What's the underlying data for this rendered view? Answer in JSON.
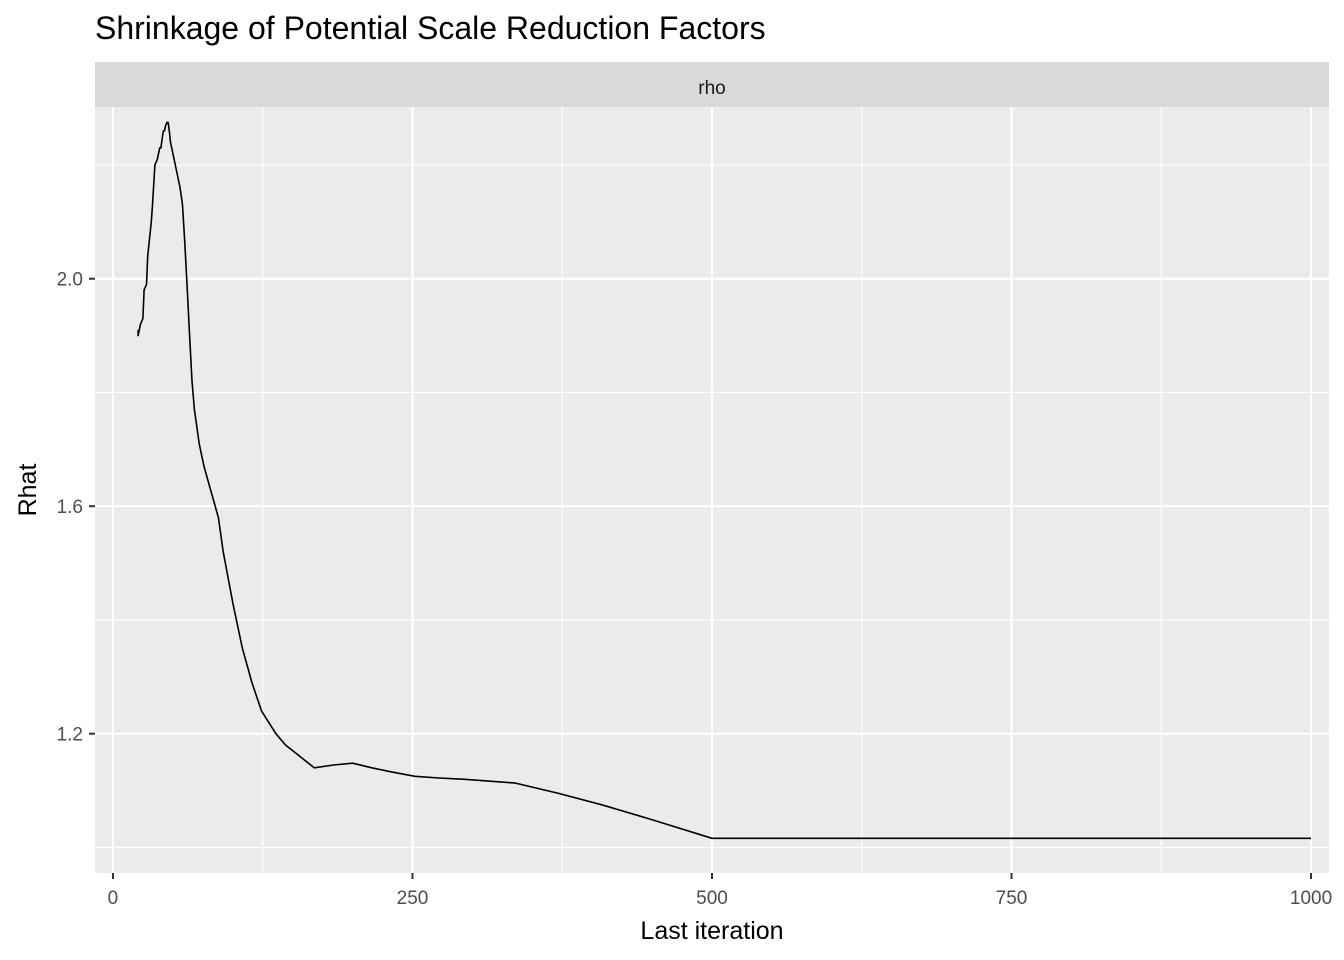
{
  "chart_data": {
    "type": "line",
    "title": "Shrinkage of Potential Scale Reduction Factors",
    "facet_label": "rho",
    "xlabel": "Last iteration",
    "ylabel": "Rhat",
    "xlim": [
      -15,
      1015
    ],
    "ylim": [
      0.955,
      2.302
    ],
    "x_ticks": [
      0,
      250,
      500,
      750,
      1000
    ],
    "x_tick_labels": [
      "0",
      "250",
      "500",
      "750",
      "1000"
    ],
    "x_minor": [
      125,
      375,
      625,
      875
    ],
    "y_ticks": [
      1.2,
      1.6,
      2.0
    ],
    "y_tick_labels": [
      "1.2",
      "1.6",
      "2.0"
    ],
    "y_minor": [
      1.0,
      1.4,
      1.8,
      2.2
    ],
    "grid": true,
    "series": [
      {
        "color": "#000000",
        "x": [
          21,
          21,
          23,
          25,
          26,
          28,
          29,
          32,
          33,
          35,
          37,
          39,
          40,
          42,
          43,
          44,
          45,
          46,
          47,
          48,
          50,
          52,
          54,
          56,
          58,
          60,
          62,
          64,
          66,
          68,
          72,
          76,
          80,
          84,
          88,
          92,
          100,
          108,
          116,
          124,
          136,
          144,
          156,
          168,
          184,
          200,
          216,
          232,
          252,
          272,
          292,
          312,
          336,
          372,
          408,
          448,
          500,
          600,
          700,
          800,
          900,
          1000
        ],
        "y": [
          1.91,
          1.9,
          1.92,
          1.93,
          1.98,
          1.99,
          2.04,
          2.1,
          2.13,
          2.2,
          2.21,
          2.23,
          2.23,
          2.26,
          2.26,
          2.27,
          2.275,
          2.275,
          2.26,
          2.24,
          2.22,
          2.2,
          2.18,
          2.16,
          2.13,
          2.06,
          1.98,
          1.9,
          1.82,
          1.77,
          1.71,
          1.67,
          1.64,
          1.61,
          1.58,
          1.52,
          1.43,
          1.35,
          1.29,
          1.24,
          1.2,
          1.18,
          1.16,
          1.14,
          1.145,
          1.148,
          1.14,
          1.133,
          1.125,
          1.122,
          1.12,
          1.117,
          1.113,
          1.095,
          1.075,
          1.05,
          1.016,
          1.016,
          1.016,
          1.016,
          1.016,
          1.016
        ]
      }
    ]
  }
}
